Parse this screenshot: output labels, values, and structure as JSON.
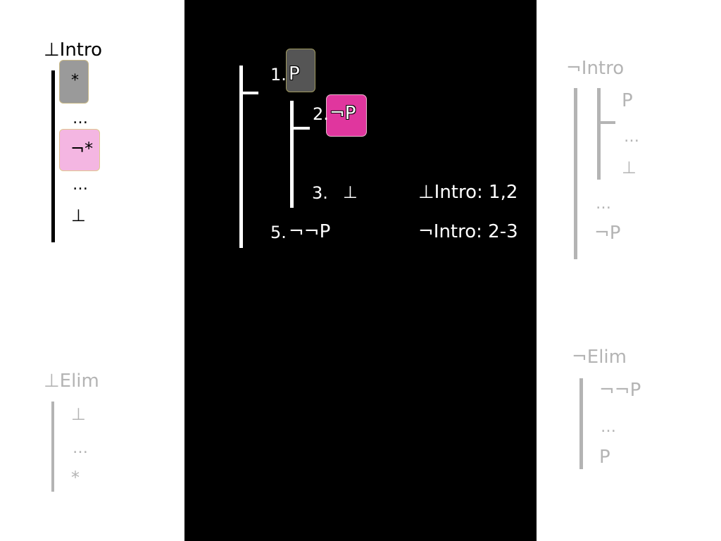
{
  "intro_bottom": {
    "title": "⊥Intro",
    "lines": [
      "*",
      "…",
      "¬*",
      "…",
      "⊥"
    ]
  },
  "elim_bottom": {
    "title": "⊥Elim",
    "lines": [
      "⊥",
      "…",
      "*"
    ]
  },
  "intro_neg": {
    "title": "¬Intro",
    "lines": [
      "P",
      "…",
      "⊥",
      "…",
      "¬P"
    ]
  },
  "elim_neg": {
    "title": "¬Elim",
    "lines": [
      "¬¬P",
      "…",
      "P"
    ]
  },
  "proof": {
    "line1": {
      "num": "1.",
      "formula": "P"
    },
    "line2": {
      "num": "2.",
      "formula": "¬P"
    },
    "line3": {
      "num": "3.",
      "formula": "⊥",
      "justification": "⊥Intro: 1,2"
    },
    "line5": {
      "num": "5.",
      "formula": "¬¬P",
      "justification": "¬Intro: 2-3"
    }
  },
  "colors": {
    "background": "#ffffff",
    "proof_panel": "#000000",
    "active_text": "#000000",
    "inactive_text": "#b4b4b4",
    "highlight_grey": "#9a9a9a",
    "highlight_pink": "#f4b6e2",
    "highlight_dark": "#555555",
    "highlight_magenta": "#e0369e"
  }
}
